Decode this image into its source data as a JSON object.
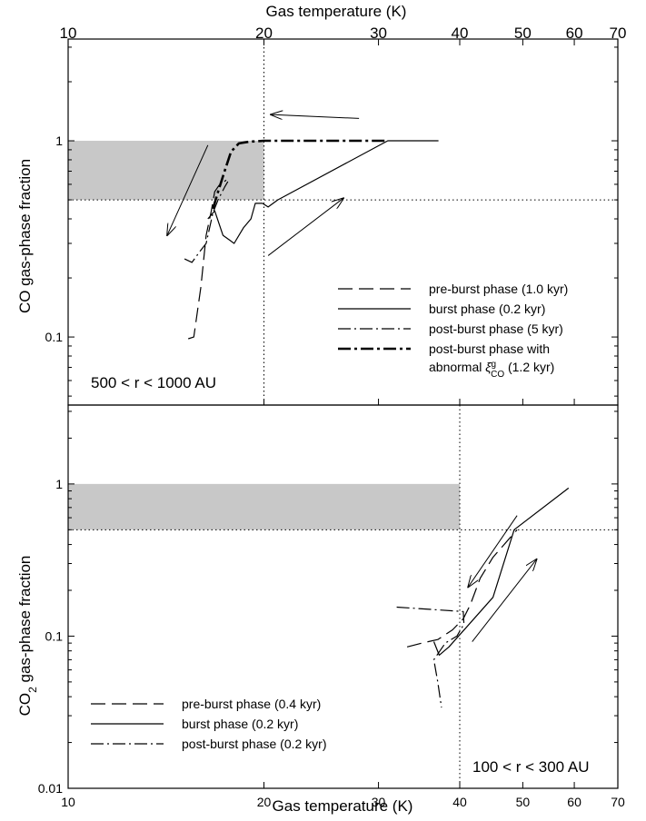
{
  "chart_data": [
    {
      "type": "line",
      "panel_label": "500 < r < 1000 AU",
      "xlabel": "Gas temperature (K)",
      "ylabel": "CO gas-phase fraction",
      "xscale": "log",
      "yscale": "log",
      "xlim": [
        10,
        70
      ],
      "ylim": [
        0.045,
        3.3
      ],
      "x_ticks": [
        "10",
        "20",
        "30",
        "40",
        "50",
        "60",
        "70"
      ],
      "y_ticks": [
        "0.1",
        "1"
      ],
      "vline_x": 20,
      "hline_y": 0.5,
      "shaded_region": {
        "x": [
          10,
          20
        ],
        "y": [
          0.5,
          1.0
        ]
      },
      "legend_position": "lower-right",
      "series": [
        {
          "name": "pre-burst phase (1.0 kyr)",
          "style": "dashed",
          "x": [
            15.3,
            15.6,
            16.0,
            16.3,
            16.5,
            16.6,
            16.8,
            17.1,
            17.5
          ],
          "y": [
            0.098,
            0.1,
            0.18,
            0.33,
            0.4,
            0.44,
            0.55,
            0.6,
            0.63
          ]
        },
        {
          "name": "burst phase (0.2 kyr)",
          "style": "solid",
          "x": [
            16.4,
            16.8,
            17.3,
            18.0,
            18.6,
            19.1,
            19.4,
            19.9,
            20.3,
            21.0,
            31.0,
            37.1
          ],
          "y": [
            0.4,
            0.44,
            0.33,
            0.3,
            0.36,
            0.4,
            0.48,
            0.48,
            0.46,
            0.5,
            1.0,
            1.0
          ]
        },
        {
          "name": "post-burst phase (5 kyr)",
          "style": "dash-dot",
          "x": [
            15.1,
            15.5,
            15.9,
            16.3,
            16.7,
            17.0,
            17.4,
            17.6
          ],
          "y": [
            0.25,
            0.24,
            0.27,
            0.3,
            0.43,
            0.5,
            0.58,
            0.62
          ]
        },
        {
          "name": "post-burst phase  with",
          "name_line2": "abnormal",
          "name_line2_symbol": "ξ",
          "name_line2_sup": "g",
          "name_line2_sub": "CO",
          "name_line2_tail": "(1.2 kyr)",
          "style": "dash-dot-bold",
          "x": [
            16.7,
            17.0,
            17.4,
            17.8,
            18.3,
            19.0,
            20.0,
            22.0,
            26.0,
            31.0
          ],
          "y": [
            0.45,
            0.55,
            0.7,
            0.88,
            0.97,
            0.99,
            1.0,
            1.0,
            1.0,
            1.0
          ]
        }
      ],
      "arrows": [
        {
          "from": [
            28.0,
            1.3
          ],
          "to": [
            20.5,
            1.36
          ]
        },
        {
          "from": [
            16.4,
            0.95
          ],
          "to": [
            14.2,
            0.33
          ]
        },
        {
          "from": [
            20.3,
            0.26
          ],
          "to": [
            26.5,
            0.51
          ]
        }
      ]
    },
    {
      "type": "line",
      "panel_label": "100 < r < 300 AU",
      "xlabel": "Gas temperature (K)",
      "ylabel": "CO2 gas-phase fraction",
      "ylabel_main": "CO",
      "ylabel_sub": "2",
      "ylabel_rest": " gas-phase fraction",
      "xscale": "log",
      "yscale": "log",
      "xlim": [
        10,
        70
      ],
      "ylim": [
        0.01,
        3.3
      ],
      "x_ticks": [
        "10",
        "20",
        "30",
        "40",
        "50",
        "60",
        "70"
      ],
      "y_ticks": [
        "0.01",
        "0.1",
        "1"
      ],
      "vline_x": 40,
      "hline_y": 0.5,
      "shaded_region": {
        "x": [
          10,
          40
        ],
        "y": [
          0.5,
          1.0
        ]
      },
      "legend_position": "lower-left",
      "series": [
        {
          "name": "pre-burst phase (0.4 kyr)",
          "style": "dashed",
          "x": [
            33.2,
            35.0,
            37.0,
            39.0,
            40.5,
            41.5,
            43.0,
            45.0,
            49.0
          ],
          "y": [
            0.085,
            0.09,
            0.095,
            0.11,
            0.13,
            0.16,
            0.24,
            0.33,
            0.5
          ]
        },
        {
          "name": "burst phase (0.2 kyr)",
          "style": "solid",
          "x": [
            36.5,
            37.2,
            38.5,
            41.0,
            45.0,
            48.5,
            58.8
          ],
          "y": [
            0.092,
            0.075,
            0.085,
            0.115,
            0.18,
            0.5,
            0.94
          ]
        },
        {
          "name": "post-burst phase (0.2 kyr)",
          "style": "dash-dot",
          "x": [
            32.0,
            40.5,
            40.6,
            39.6,
            38.0,
            36.5,
            37.0,
            37.5
          ],
          "y": [
            0.155,
            0.145,
            0.12,
            0.1,
            0.09,
            0.07,
            0.05,
            0.034
          ]
        }
      ],
      "arrows": [
        {
          "from": [
            49.0,
            0.62
          ],
          "to": [
            41.2,
            0.21
          ]
        },
        {
          "from": [
            41.8,
            0.092
          ],
          "to": [
            52.5,
            0.32
          ]
        }
      ]
    }
  ]
}
